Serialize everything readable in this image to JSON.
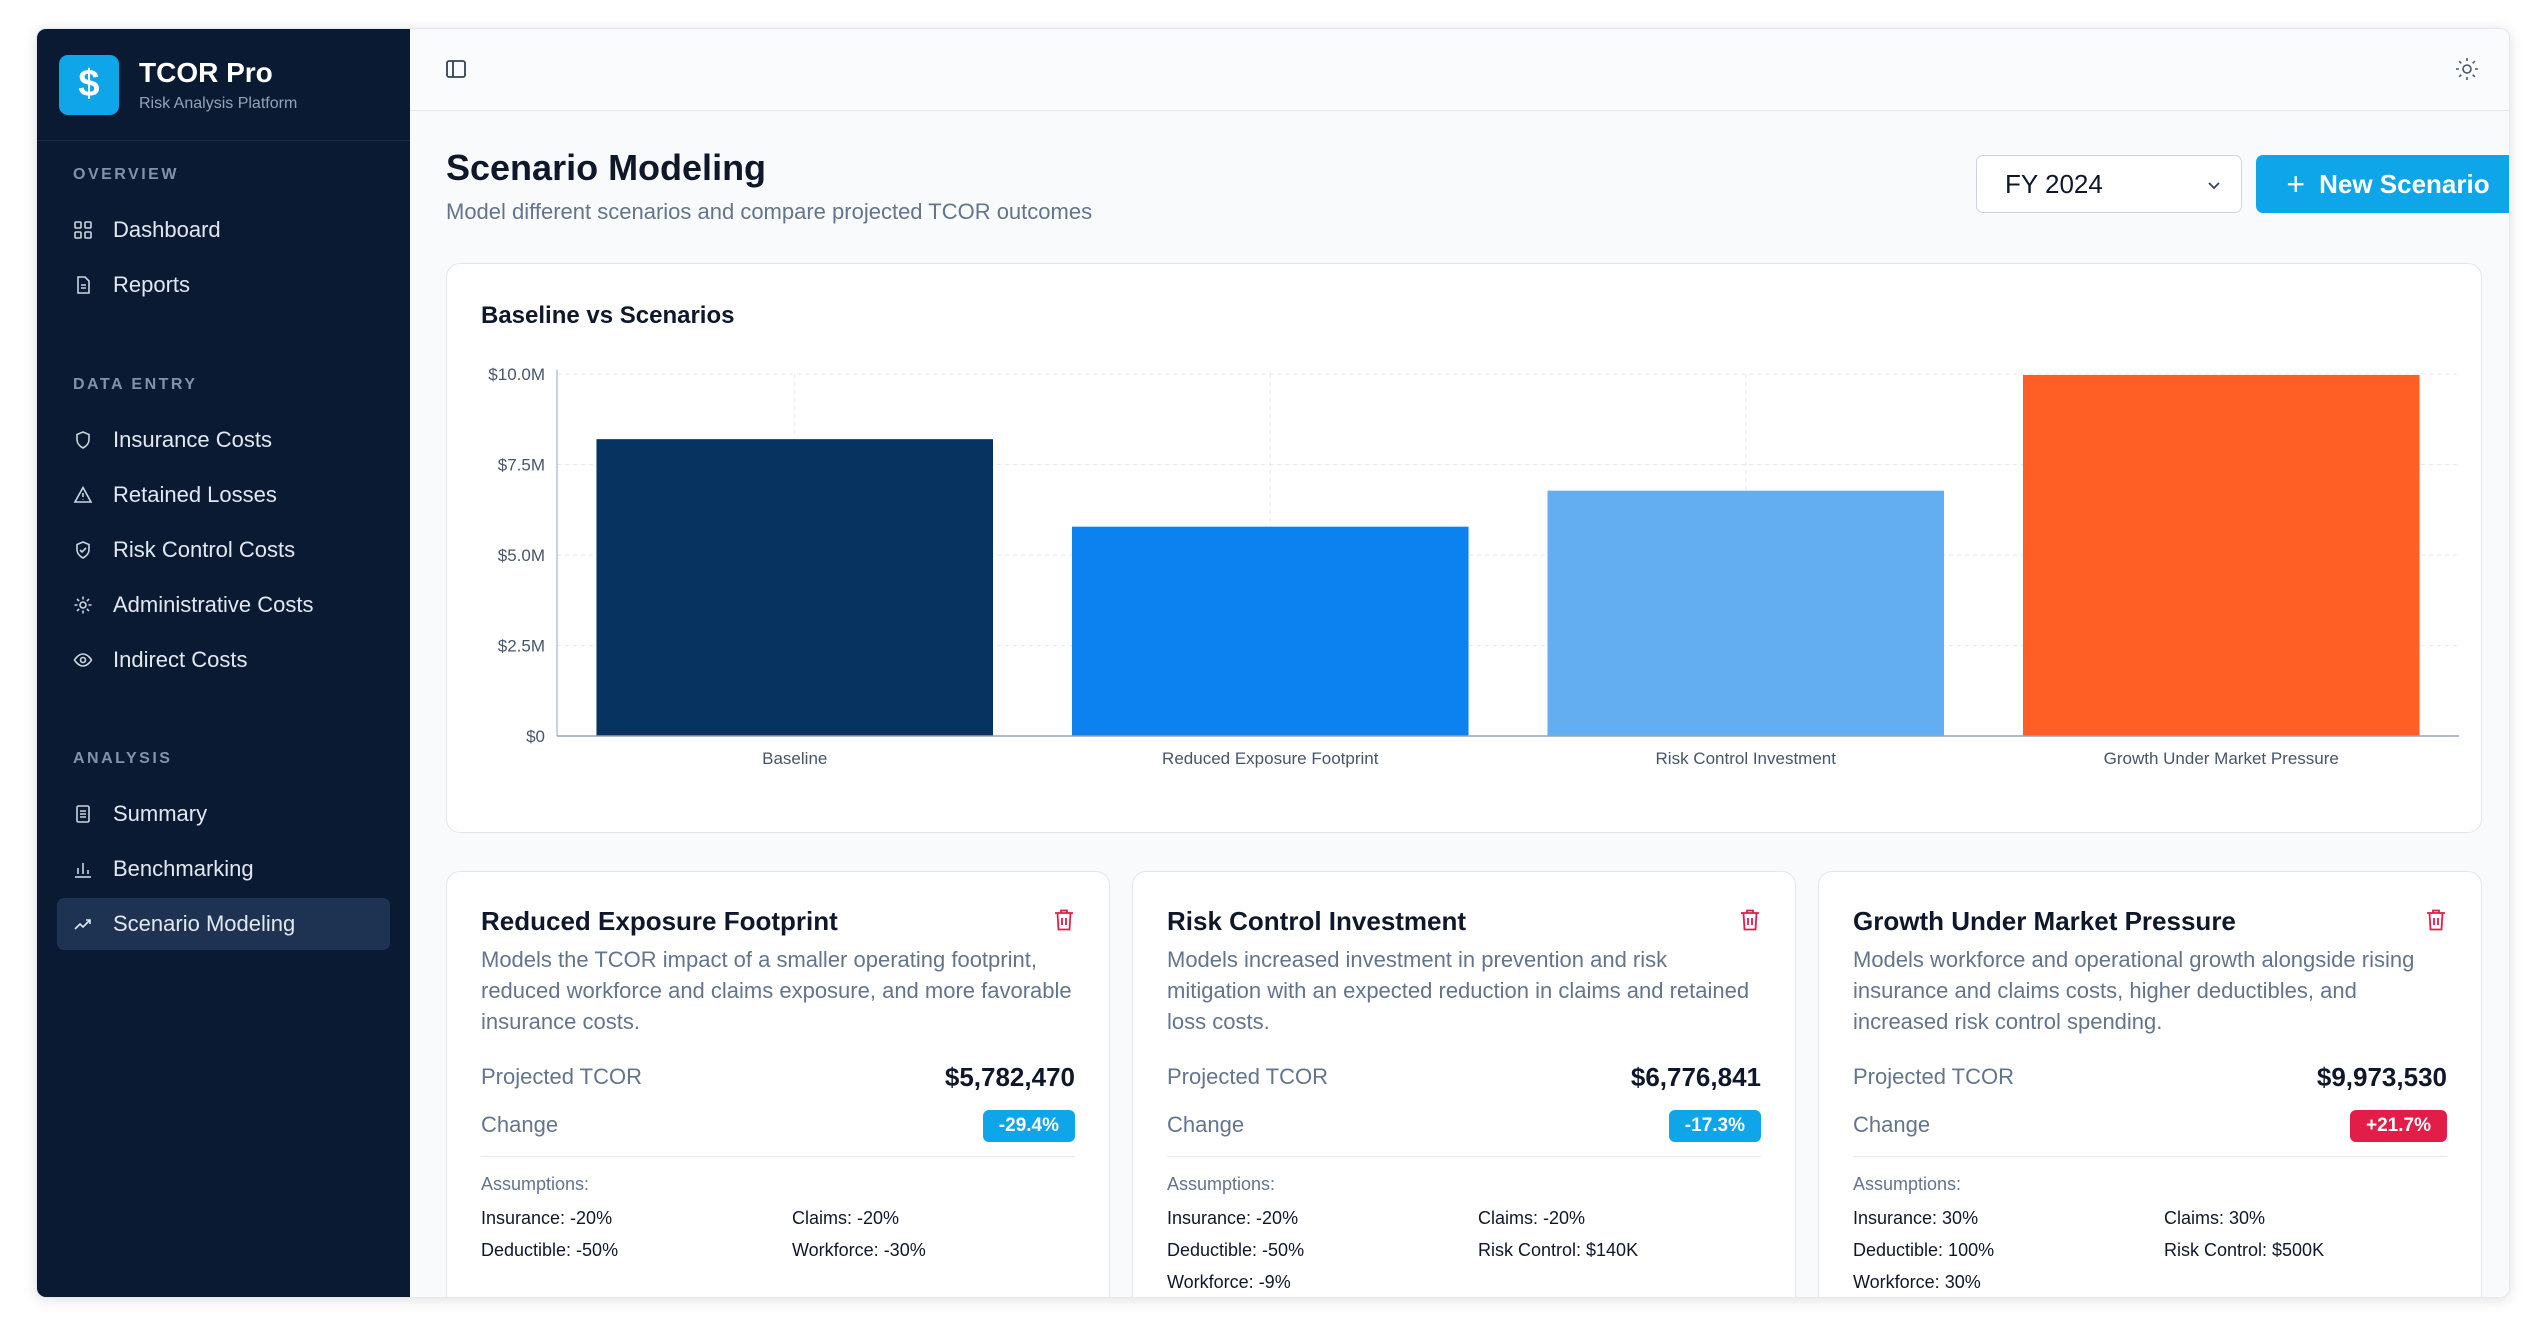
{
  "brand": {
    "title": "TCOR Pro",
    "subtitle": "Risk Analysis Platform",
    "logo_symbol": "$"
  },
  "sidebar": {
    "sections": [
      {
        "heading": "OVERVIEW",
        "items": [
          {
            "label": "Dashboard",
            "icon": "dashboard-grid-icon"
          },
          {
            "label": "Reports",
            "icon": "document-icon"
          }
        ]
      },
      {
        "heading": "DATA ENTRY",
        "items": [
          {
            "label": "Insurance Costs",
            "icon": "shield-icon"
          },
          {
            "label": "Retained Losses",
            "icon": "warning-triangle-icon"
          },
          {
            "label": "Risk Control Costs",
            "icon": "shield-check-icon"
          },
          {
            "label": "Administrative Costs",
            "icon": "gear-icon"
          },
          {
            "label": "Indirect Costs",
            "icon": "eye-icon"
          }
        ]
      },
      {
        "heading": "ANALYSIS",
        "items": [
          {
            "label": "Summary",
            "icon": "document-icon"
          },
          {
            "label": "Benchmarking",
            "icon": "bar-chart-icon"
          },
          {
            "label": "Scenario Modeling",
            "icon": "trend-line-icon",
            "active": true
          }
        ]
      }
    ]
  },
  "header": {
    "title": "Scenario Modeling",
    "subtitle": "Model different scenarios and compare projected TCOR outcomes",
    "fiscal_year": "FY 2024",
    "new_button": "New Scenario"
  },
  "chart_data": {
    "type": "bar",
    "title": "Baseline vs Scenarios",
    "categories": [
      "Baseline",
      "Reduced Exposure Footprint",
      "Risk Control Investment",
      "Growth Under Market Pressure"
    ],
    "values": [
      8200000,
      5782470,
      6776841,
      9973530
    ],
    "bar_colors": [
      "#06335f",
      "#0b82f0",
      "#63aef0",
      "#ff5e24"
    ],
    "ylim": [
      0,
      10000000
    ],
    "yticks": [
      0,
      2500000,
      5000000,
      7500000,
      10000000
    ],
    "ytick_labels": [
      "$0",
      "$2.5M",
      "$5.0M",
      "$7.5M",
      "$10.0M"
    ],
    "grid": true,
    "xlabel": "",
    "ylabel": ""
  },
  "scenarios": [
    {
      "title": "Reduced Exposure Footprint",
      "description": "Models the TCOR impact of a smaller operating footprint, reduced workforce and claims exposure, and more favorable insurance costs.",
      "projected_label": "Projected TCOR",
      "projected_value": "$5,782,470",
      "change_label": "Change",
      "change_value": "-29.4%",
      "change_color": "#0ea5e9",
      "assumptions_label": "Assumptions:",
      "assumptions": [
        "Insurance: -20%",
        "Claims: -20%",
        "Deductible: -50%",
        "Workforce: -30%"
      ]
    },
    {
      "title": "Risk Control Investment",
      "description": "Models increased investment in prevention and risk mitigation with an expected reduction in claims and retained loss costs.",
      "projected_label": "Projected TCOR",
      "projected_value": "$6,776,841",
      "change_label": "Change",
      "change_value": "-17.3%",
      "change_color": "#0ea5e9",
      "assumptions_label": "Assumptions:",
      "assumptions": [
        "Insurance: -20%",
        "Claims: -20%",
        "Deductible: -50%",
        "Risk Control: $140K",
        "Workforce: -9%"
      ]
    },
    {
      "title": "Growth Under Market Pressure",
      "description": "Models workforce and operational growth alongside rising insurance and claims costs, higher deductibles, and increased risk control spending.",
      "projected_label": "Projected TCOR",
      "projected_value": "$9,973,530",
      "change_label": "Change",
      "change_value": "+21.7%",
      "change_color": "#e11d48",
      "assumptions_label": "Assumptions:",
      "assumptions": [
        "Insurance: 30%",
        "Claims: 30%",
        "Deductible: 100%",
        "Risk Control: $500K",
        "Workforce: 30%"
      ]
    }
  ]
}
